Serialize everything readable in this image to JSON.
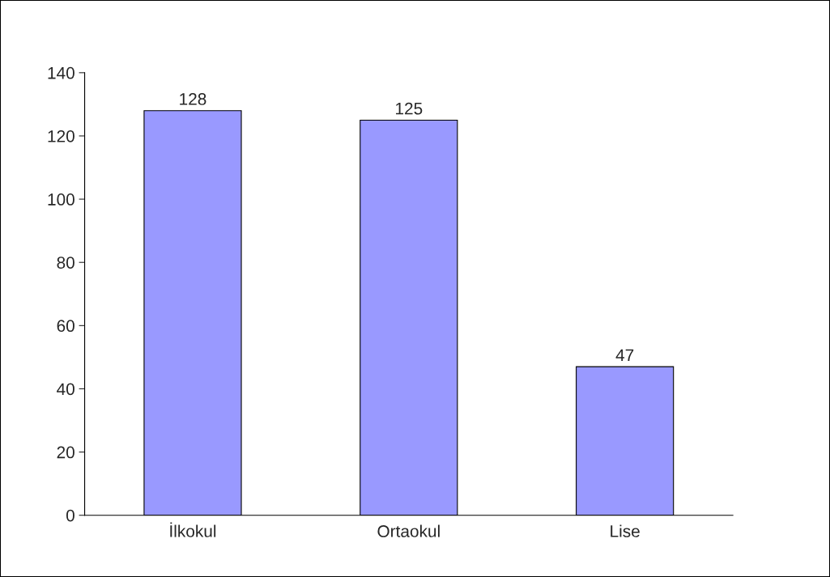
{
  "chart_data": {
    "type": "bar",
    "categories": [
      "İlkokul",
      "Ortaokul",
      "Lise"
    ],
    "values": [
      128,
      125,
      47
    ],
    "color": "#9999ff",
    "ylim": [
      0,
      140
    ],
    "yticks": [
      0,
      20,
      40,
      60,
      80,
      100,
      120,
      140
    ],
    "data_labels": true,
    "grid": false,
    "legend": false
  }
}
